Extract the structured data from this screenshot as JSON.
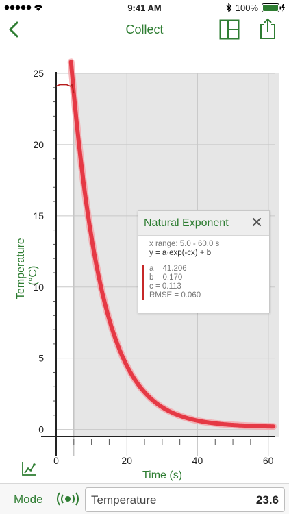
{
  "status": {
    "time": "9:41 AM",
    "battery": "100%"
  },
  "nav": {
    "title": "Collect",
    "back_icon": "chevron-left-icon",
    "layout_icon": "layout-icon",
    "share_icon": "share-icon"
  },
  "chart_data": {
    "type": "line",
    "title": "",
    "xlabel": "Time (s)",
    "ylabel": "Temperature (°C)",
    "xlim": [
      -2,
      62
    ],
    "ylim": [
      -0.5,
      25
    ],
    "xticks": [
      0,
      20,
      40,
      60
    ],
    "yticks": [
      0,
      5,
      10,
      15,
      20,
      25
    ],
    "grid": true,
    "selection": [
      5,
      60
    ],
    "series": [
      {
        "name": "",
        "x": [
          0,
          1,
          2,
          3,
          4,
          4.5,
          5
        ],
        "y": [
          24.1,
          24.2,
          24.2,
          24.2,
          24.1,
          24.2,
          23.6
        ],
        "color": "#b71c1c"
      }
    ],
    "fit": {
      "model": "a*exp(-cx)+b",
      "a": 41.206,
      "b": 0.17,
      "c": 0.113,
      "x_range": [
        5,
        60
      ],
      "color": "#e53945"
    }
  },
  "fit_popup": {
    "title": "Natural Exponent",
    "x_range": "x range: 5.0 - 60.0 s",
    "equation": "y = a·exp(-cx) + b",
    "a": "a = 41.206",
    "b": "b = 0.170",
    "c": "c = 0.113",
    "rmse": "RMSE = 0.060"
  },
  "bottom": {
    "mode_label": "Mode",
    "sensor_name": "Temperature",
    "sensor_value": "23.6"
  },
  "colors": {
    "accent": "#2e7d32",
    "data": "#b71c1c",
    "fit": "#e53945"
  }
}
